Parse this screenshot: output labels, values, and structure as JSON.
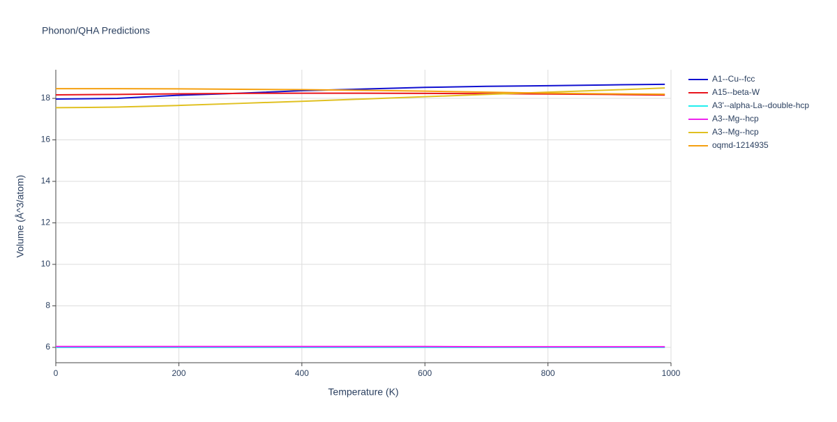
{
  "chart_data": {
    "type": "line",
    "title": "Phonon/QHA Predictions",
    "x_label": "Temperature (K)",
    "y_label": "Volume (Å^3/atom)",
    "x": [
      0,
      100,
      200,
      300,
      400,
      500,
      600,
      700,
      800,
      900,
      990
    ],
    "series": [
      {
        "name": "A1--Cu--fcc",
        "color": "#1010d0",
        "values": [
          17.97,
          18.0,
          18.15,
          18.25,
          18.37,
          18.45,
          18.53,
          18.58,
          18.61,
          18.65,
          18.68
        ]
      },
      {
        "name": "A15--beta-W",
        "color": "#e8141c",
        "values": [
          18.17,
          18.19,
          18.22,
          18.24,
          18.25,
          18.25,
          18.24,
          18.23,
          18.21,
          18.19,
          18.16
        ]
      },
      {
        "name": "A3'--alpha-La--double-hcp",
        "color": "#22eeee",
        "values": [
          6.0,
          6.0,
          6.0,
          6.0,
          6.0,
          6.0,
          6.0,
          6.0,
          6.0,
          6.0,
          6.0
        ]
      },
      {
        "name": "A3--Mg--hcp",
        "color": "#ee22ee",
        "values": [
          6.04,
          6.04,
          6.04,
          6.04,
          6.04,
          6.04,
          6.04,
          6.03,
          6.03,
          6.03,
          6.03
        ]
      },
      {
        "name": "A3--Mg--hcp",
        "color": "#e0c020",
        "values": [
          17.55,
          17.58,
          17.66,
          17.76,
          17.86,
          17.97,
          18.08,
          18.19,
          18.3,
          18.4,
          18.5
        ]
      },
      {
        "name": "oqmd-1214935",
        "color": "#f5a010",
        "values": [
          18.47,
          18.47,
          18.46,
          18.44,
          18.42,
          18.39,
          18.35,
          18.3,
          18.25,
          18.22,
          18.2
        ]
      }
    ],
    "xlim": [
      0,
      1000
    ],
    "ylim": [
      5.26,
      19.38
    ],
    "xticks": [
      0,
      200,
      400,
      600,
      800,
      1000
    ],
    "yticks": [
      6,
      8,
      10,
      12,
      14,
      16,
      18
    ],
    "grid": true
  }
}
